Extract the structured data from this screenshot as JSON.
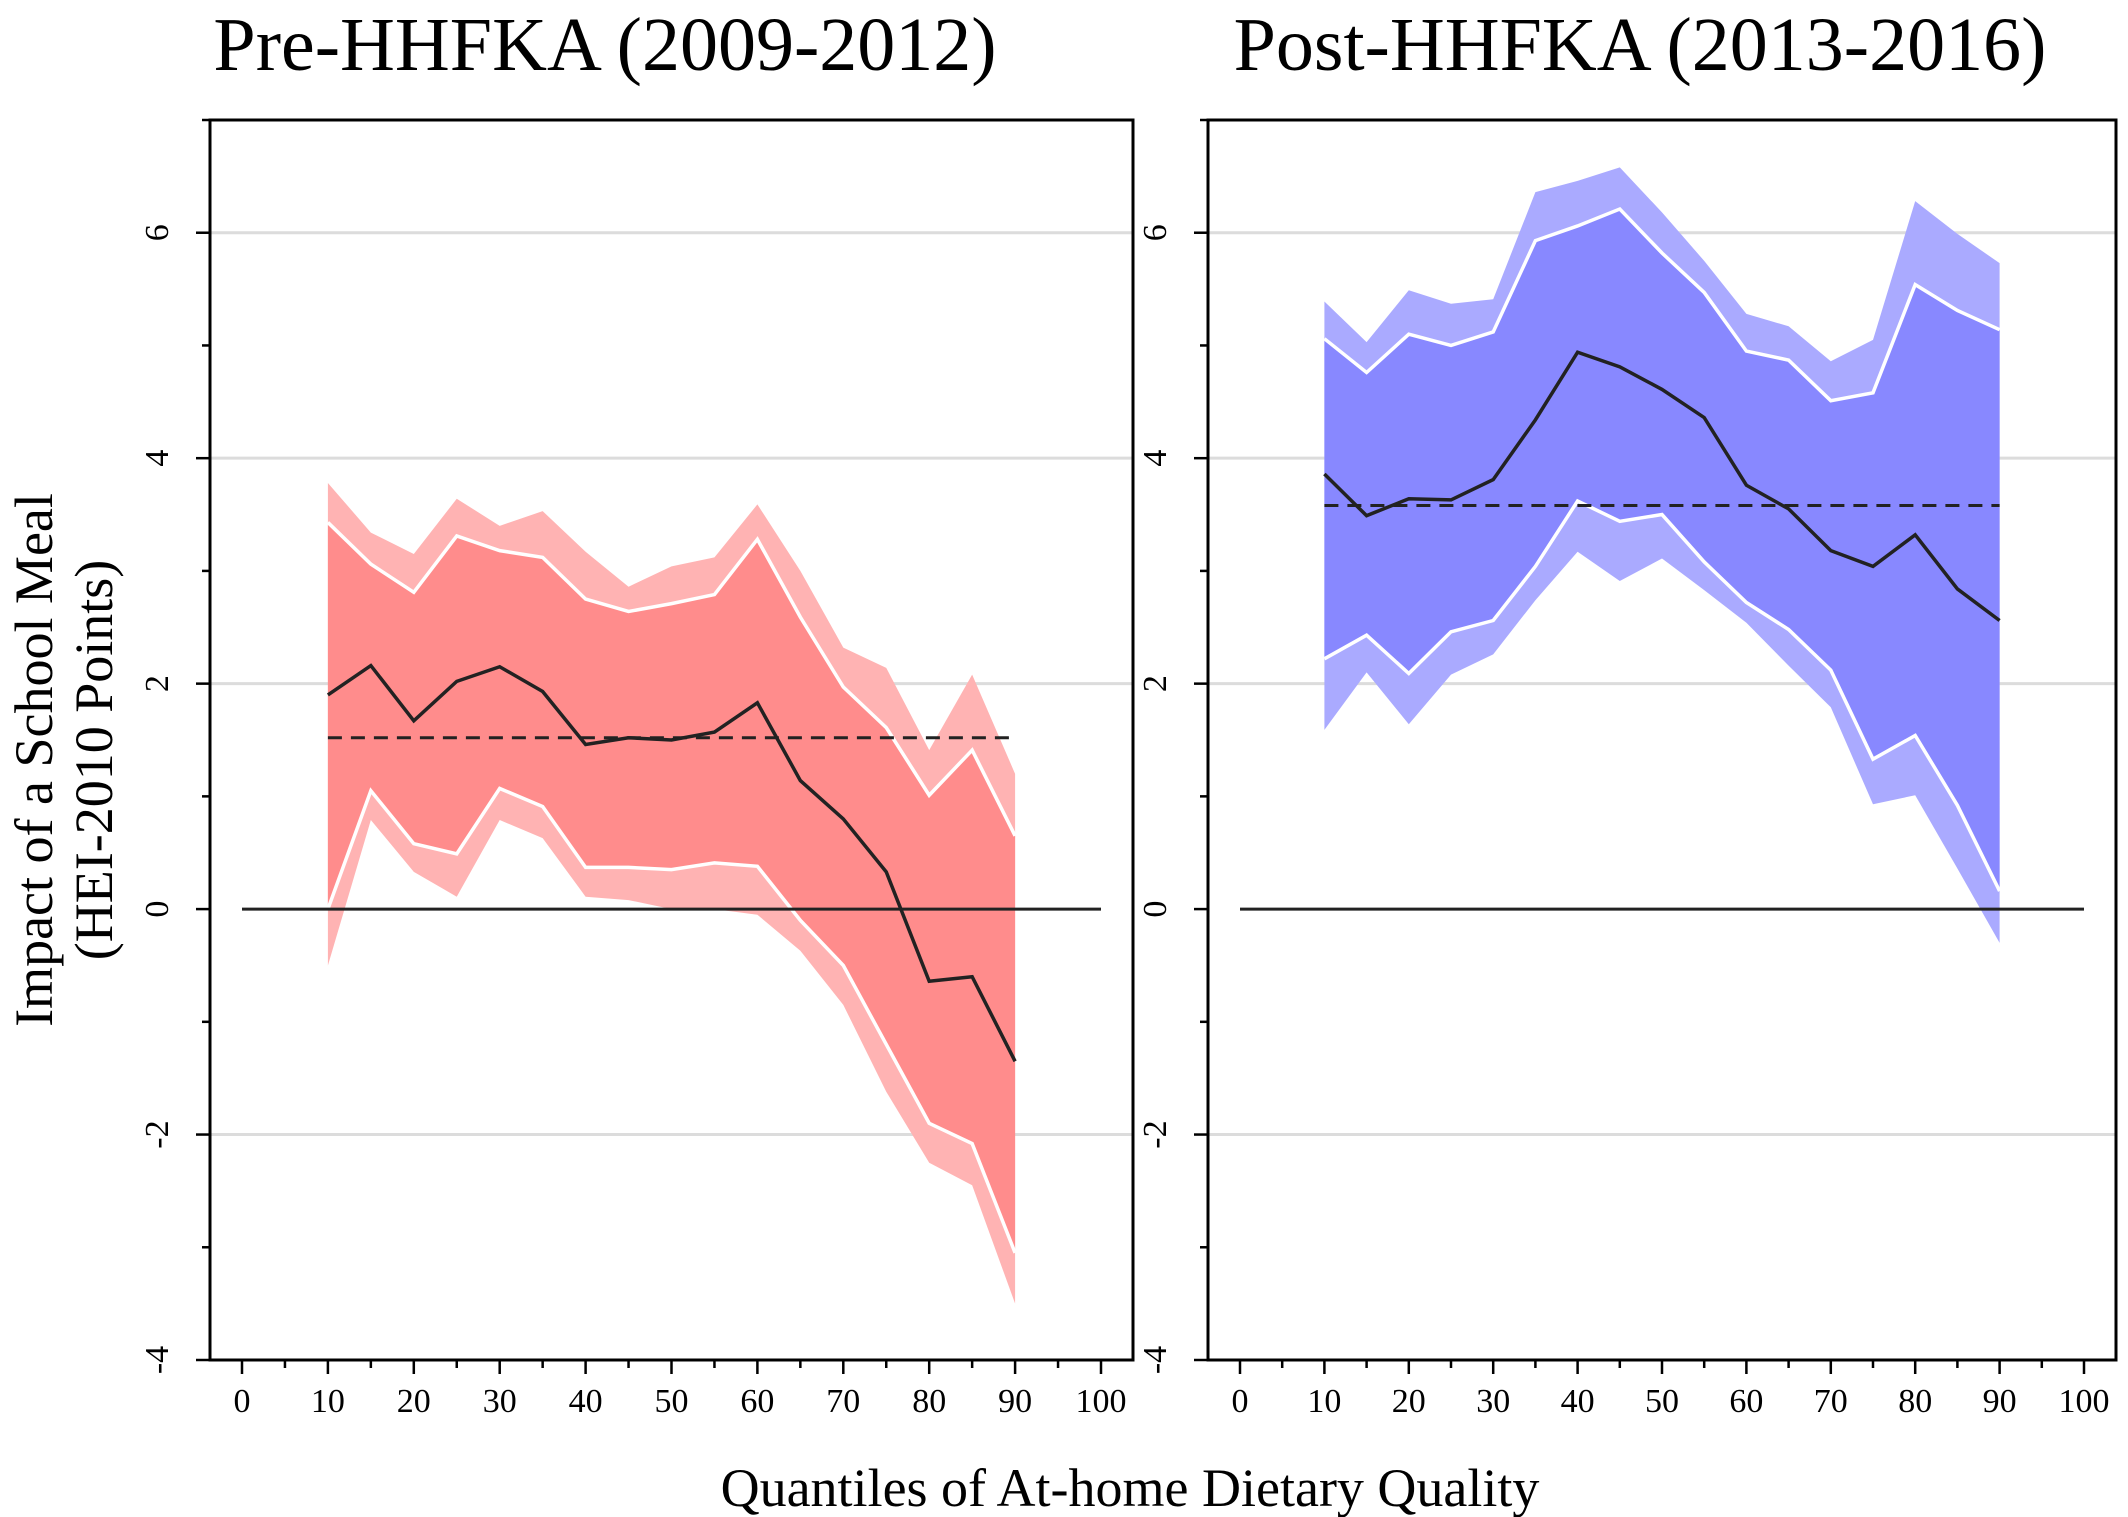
{
  "chart_data": {
    "type": "line",
    "ylabel_line1": "Impact of a School Meal",
    "ylabel_line2": "(HEI-2010 Points)",
    "xlabel": "Quantiles of At-home Dietary Quality",
    "xlim": [
      0,
      100
    ],
    "ylim": [
      -4,
      7
    ],
    "x_ticks": [
      "0",
      "10",
      "20",
      "30",
      "40",
      "50",
      "60",
      "70",
      "80",
      "90",
      "100"
    ],
    "y_ticks": [
      "-4",
      "-2",
      "0",
      "2",
      "4",
      "6"
    ],
    "grid": true,
    "panels": [
      {
        "title": "Pre-HHFKA (2009-2012)",
        "fill_inner": "#ff8c8c",
        "fill_outer": "#ffb3b3",
        "x": [
          10,
          15,
          20,
          25,
          30,
          35,
          40,
          45,
          50,
          55,
          60,
          65,
          70,
          75,
          80,
          85,
          90
        ],
        "estimate": [
          1.9,
          2.16,
          1.67,
          2.02,
          2.15,
          1.93,
          1.46,
          1.52,
          1.5,
          1.57,
          1.83,
          1.14,
          0.8,
          0.33,
          -0.64,
          -0.6,
          -1.35
        ],
        "ci95_upper": [
          3.43,
          3.06,
          2.81,
          3.31,
          3.18,
          3.12,
          2.75,
          2.64,
          2.71,
          2.79,
          3.28,
          2.59,
          1.97,
          1.61,
          1.01,
          1.41,
          0.65
        ],
        "ci95_lower": [
          0.0,
          1.05,
          0.58,
          0.49,
          1.07,
          0.91,
          0.37,
          0.37,
          0.35,
          0.41,
          0.38,
          -0.1,
          -0.5,
          -1.2,
          -1.9,
          -2.08,
          -3.05
        ],
        "ci99_upper": [
          3.78,
          3.34,
          3.15,
          3.64,
          3.4,
          3.53,
          3.17,
          2.86,
          3.04,
          3.12,
          3.59,
          3.0,
          2.32,
          2.14,
          1.41,
          2.08,
          1.2
        ],
        "ci99_lower": [
          -0.5,
          0.79,
          0.33,
          0.11,
          0.79,
          0.63,
          0.11,
          0.08,
          0.0,
          0.0,
          -0.05,
          -0.37,
          -0.85,
          -1.62,
          -2.25,
          -2.45,
          -3.5
        ],
        "mean_effect": 1.52
      },
      {
        "title": "Post-HHFKA (2013-2016)",
        "fill_inner": "#8888ff",
        "fill_outer": "#aaaaff",
        "x": [
          10,
          15,
          20,
          25,
          30,
          35,
          40,
          45,
          50,
          55,
          60,
          65,
          70,
          75,
          80,
          85,
          90
        ],
        "estimate": [
          3.86,
          3.49,
          3.64,
          3.63,
          3.81,
          4.34,
          4.94,
          4.81,
          4.61,
          4.36,
          3.76,
          3.55,
          3.18,
          3.04,
          3.32,
          2.84,
          2.56
        ],
        "ci95_upper": [
          5.06,
          4.76,
          5.1,
          5.0,
          5.12,
          5.93,
          6.06,
          6.21,
          5.82,
          5.47,
          4.95,
          4.87,
          4.51,
          4.58,
          5.54,
          5.31,
          5.14
        ],
        "ci95_lower": [
          2.22,
          2.43,
          2.09,
          2.46,
          2.56,
          3.04,
          3.62,
          3.44,
          3.5,
          3.08,
          2.72,
          2.48,
          2.12,
          1.33,
          1.54,
          0.92,
          0.16
        ],
        "ci99_upper": [
          5.39,
          5.03,
          5.49,
          5.37,
          5.41,
          6.36,
          6.46,
          6.58,
          6.18,
          5.75,
          5.28,
          5.17,
          4.86,
          5.05,
          6.28,
          5.99,
          5.73
        ],
        "ci99_lower": [
          1.59,
          2.1,
          1.64,
          2.08,
          2.26,
          2.74,
          3.17,
          2.91,
          3.11,
          2.83,
          2.54,
          2.16,
          1.79,
          0.93,
          1.01,
          0.36,
          -0.3
        ],
        "mean_effect": 3.58
      }
    ]
  }
}
